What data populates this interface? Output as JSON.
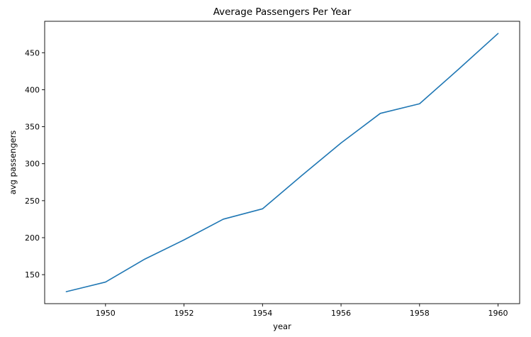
{
  "chart_data": {
    "type": "line",
    "title": "Average Passengers Per Year",
    "xlabel": "year",
    "ylabel": "avg passengers",
    "xlim": [
      1948.45,
      1960.55
    ],
    "ylim": [
      110.8,
      492.5
    ],
    "xticks": [
      1950,
      1952,
      1954,
      1956,
      1958,
      1960
    ],
    "yticks": [
      150,
      200,
      250,
      300,
      350,
      400,
      450
    ],
    "grid": false,
    "series": [
      {
        "color": "#1f77b4",
        "x": [
          1949,
          1950,
          1951,
          1952,
          1953,
          1954,
          1955,
          1956,
          1957,
          1958,
          1959,
          1960
        ],
        "y": [
          127,
          140,
          171,
          197,
          225,
          239,
          284,
          328,
          368,
          381,
          428,
          476
        ]
      }
    ]
  }
}
